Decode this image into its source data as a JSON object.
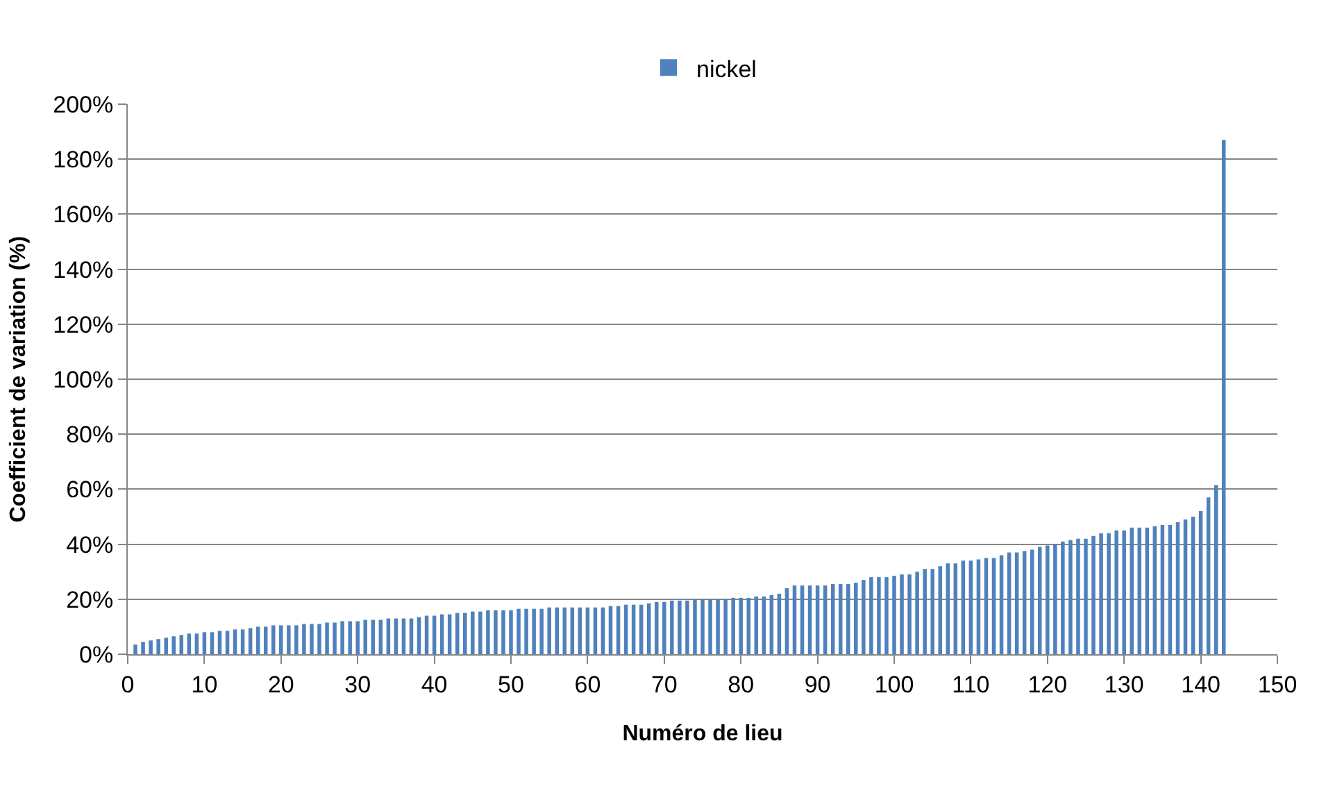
{
  "chart_data": {
    "type": "bar",
    "xlabel": "Numéro de lieu",
    "ylabel": "Coefficient de variation (%)",
    "x": [
      1,
      2,
      3,
      4,
      5,
      6,
      7,
      8,
      9,
      10,
      11,
      12,
      13,
      14,
      15,
      16,
      17,
      18,
      19,
      20,
      21,
      22,
      23,
      24,
      25,
      26,
      27,
      28,
      29,
      30,
      31,
      32,
      33,
      34,
      35,
      36,
      37,
      38,
      39,
      40,
      41,
      42,
      43,
      44,
      45,
      46,
      47,
      48,
      49,
      50,
      51,
      52,
      53,
      54,
      55,
      56,
      57,
      58,
      59,
      60,
      61,
      62,
      63,
      64,
      65,
      66,
      67,
      68,
      69,
      70,
      71,
      72,
      73,
      74,
      75,
      76,
      77,
      78,
      79,
      80,
      81,
      82,
      83,
      84,
      85,
      86,
      87,
      88,
      89,
      90,
      91,
      92,
      93,
      94,
      95,
      96,
      97,
      98,
      99,
      100,
      101,
      102,
      103,
      104,
      105,
      106,
      107,
      108,
      109,
      110,
      111,
      112,
      113,
      114,
      115,
      116,
      117,
      118,
      119,
      120,
      121,
      122,
      123,
      124,
      125,
      126,
      127,
      128,
      129,
      130,
      131,
      132,
      133,
      134,
      135,
      136,
      137,
      138,
      139,
      140,
      141,
      142,
      143
    ],
    "series": [
      {
        "name": "nickel",
        "color": "#4f81bd",
        "values": [
          3.5,
          4.5,
          5,
          5.5,
          6,
          6.5,
          7,
          7.5,
          7.5,
          8,
          8,
          8.5,
          8.5,
          9,
          9,
          9.5,
          10,
          10,
          10.5,
          10.5,
          10.5,
          10.5,
          11,
          11,
          11,
          11.5,
          11.5,
          12,
          12,
          12,
          12.5,
          12.5,
          12.5,
          13,
          13,
          13,
          13,
          13.5,
          14,
          14,
          14.5,
          14.5,
          15,
          15,
          15.5,
          15.5,
          16,
          16,
          16,
          16,
          16.5,
          16.5,
          16.5,
          16.5,
          17,
          17,
          17,
          17,
          17,
          17,
          17,
          17,
          17.5,
          17.5,
          18,
          18,
          18,
          18.5,
          19,
          19,
          19.5,
          19.5,
          19.5,
          20,
          20,
          20,
          20,
          20,
          20.5,
          20.5,
          20.5,
          21,
          21,
          21.5,
          22,
          24,
          25,
          25,
          25,
          25,
          25,
          25.5,
          25.5,
          25.5,
          26,
          27,
          28,
          28,
          28,
          28.5,
          29,
          29,
          30,
          31,
          31,
          32,
          33,
          33,
          34,
          34,
          34.5,
          35,
          35,
          36,
          37,
          37,
          37.5,
          38,
          39,
          39.5,
          40,
          41,
          41.5,
          42,
          42,
          43,
          44,
          44,
          45,
          45,
          46,
          46,
          46,
          46.5,
          47,
          47,
          48,
          49,
          50,
          52,
          57,
          61.5,
          187
        ]
      }
    ],
    "xlim": [
      0,
      150
    ],
    "xticks": [
      0,
      10,
      20,
      30,
      40,
      50,
      60,
      70,
      80,
      90,
      100,
      110,
      120,
      130,
      140,
      150
    ],
    "ylim": [
      0,
      200
    ],
    "yticks": [
      {
        "value": 0,
        "label": "0%"
      },
      {
        "value": 20,
        "label": "20%"
      },
      {
        "value": 40,
        "label": "40%"
      },
      {
        "value": 60,
        "label": "60%"
      },
      {
        "value": 80,
        "label": "80%"
      },
      {
        "value": 100,
        "label": "100%"
      },
      {
        "value": 120,
        "label": "120%"
      },
      {
        "value": 140,
        "label": "140%"
      },
      {
        "value": 160,
        "label": "160%"
      },
      {
        "value": 180,
        "label": "180%"
      },
      {
        "value": 200,
        "label": "200%"
      }
    ],
    "grid": "y",
    "legend": "top"
  }
}
